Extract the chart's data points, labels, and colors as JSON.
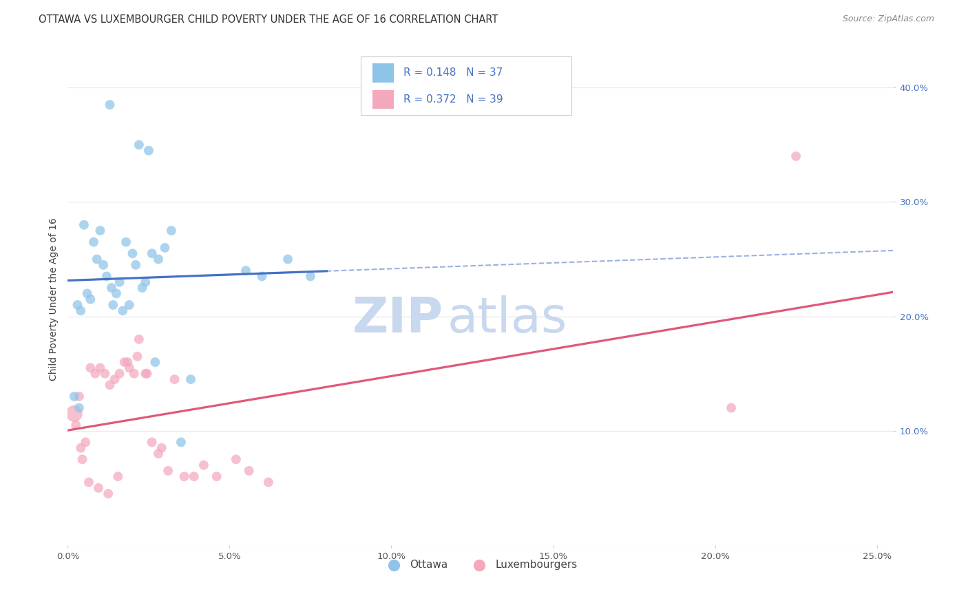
{
  "title": "OTTAWA VS LUXEMBOURGER CHILD POVERTY UNDER THE AGE OF 16 CORRELATION CHART",
  "source": "Source: ZipAtlas.com",
  "ylabel": "Child Poverty Under the Age of 16",
  "x_tick_labels": [
    "0.0%",
    "5.0%",
    "10.0%",
    "15.0%",
    "20.0%",
    "25.0%"
  ],
  "x_tick_values": [
    0.0,
    5.0,
    10.0,
    15.0,
    20.0,
    25.0
  ],
  "y_tick_labels": [
    "10.0%",
    "20.0%",
    "30.0%",
    "40.0%"
  ],
  "y_tick_values": [
    10.0,
    20.0,
    30.0,
    40.0
  ],
  "xlim": [
    0.0,
    25.5
  ],
  "ylim": [
    0.0,
    43.0
  ],
  "legend_labels": [
    "Ottawa",
    "Luxembourgers"
  ],
  "R_ottawa": "0.148",
  "N_ottawa": "37",
  "R_lux": "0.372",
  "N_lux": "39",
  "color_ottawa": "#8ec4e8",
  "color_lux": "#f4a8bc",
  "color_blue_line": "#4472c4",
  "color_pink_line": "#e05878",
  "background_color": "#ffffff",
  "grid_color": "#e8e8e8",
  "watermark_zip": "ZIP",
  "watermark_atlas": "atlas",
  "watermark_color_zip": "#c8d8ee",
  "watermark_color_atlas": "#c8d8ee",
  "legend_text_color": "#4472c4",
  "title_color": "#333333",
  "source_color": "#888888",
  "ottawa_x": [
    1.3,
    2.2,
    2.5,
    0.5,
    0.8,
    0.9,
    1.0,
    1.1,
    1.2,
    1.35,
    1.5,
    1.6,
    1.8,
    2.0,
    2.1,
    2.3,
    2.4,
    2.8,
    3.0,
    3.2,
    0.3,
    0.4,
    0.6,
    0.7,
    1.4,
    1.7,
    1.9,
    2.6,
    3.5,
    5.5,
    6.0,
    6.8,
    0.2,
    0.35,
    2.7,
    3.8,
    7.5
  ],
  "ottawa_y": [
    38.5,
    35.0,
    34.5,
    28.0,
    26.5,
    25.0,
    27.5,
    24.5,
    23.5,
    22.5,
    22.0,
    23.0,
    26.5,
    25.5,
    24.5,
    22.5,
    23.0,
    25.0,
    26.0,
    27.5,
    21.0,
    20.5,
    22.0,
    21.5,
    21.0,
    20.5,
    21.0,
    25.5,
    9.0,
    24.0,
    23.5,
    25.0,
    13.0,
    12.0,
    16.0,
    14.5,
    23.5
  ],
  "ottawa_sizes": [
    100,
    100,
    100,
    100,
    100,
    100,
    100,
    100,
    100,
    100,
    100,
    100,
    100,
    100,
    100,
    100,
    100,
    100,
    100,
    100,
    100,
    100,
    100,
    100,
    100,
    100,
    100,
    100,
    100,
    100,
    100,
    100,
    100,
    100,
    100,
    100,
    100
  ],
  "lux_x": [
    0.25,
    0.4,
    0.55,
    0.7,
    0.85,
    1.0,
    1.15,
    1.3,
    1.45,
    1.6,
    1.75,
    1.9,
    2.05,
    2.2,
    2.4,
    2.6,
    2.8,
    3.1,
    3.6,
    4.2,
    5.2,
    6.2,
    0.45,
    0.65,
    0.95,
    1.25,
    1.55,
    1.85,
    2.15,
    2.45,
    3.3,
    4.6,
    5.6,
    0.2,
    0.35,
    2.9,
    3.9,
    20.5,
    22.5
  ],
  "lux_y": [
    10.5,
    8.5,
    9.0,
    15.5,
    15.0,
    15.5,
    15.0,
    14.0,
    14.5,
    15.0,
    16.0,
    15.5,
    15.0,
    18.0,
    15.0,
    9.0,
    8.0,
    6.5,
    6.0,
    7.0,
    7.5,
    5.5,
    7.5,
    5.5,
    5.0,
    4.5,
    6.0,
    16.0,
    16.5,
    15.0,
    14.5,
    6.0,
    6.5,
    11.5,
    13.0,
    8.5,
    6.0,
    12.0,
    34.0
  ],
  "lux_sizes": [
    100,
    100,
    100,
    100,
    100,
    100,
    100,
    100,
    100,
    100,
    100,
    100,
    100,
    100,
    100,
    100,
    100,
    100,
    100,
    100,
    100,
    100,
    100,
    100,
    100,
    100,
    100,
    100,
    100,
    100,
    100,
    100,
    100,
    100,
    100,
    100,
    100,
    100,
    100
  ],
  "lux_big_idx": 33,
  "lux_big_size": 300,
  "title_fontsize": 10.5,
  "source_fontsize": 9,
  "legend_fontsize": 11,
  "axis_label_fontsize": 10,
  "tick_fontsize": 9.5,
  "watermark_fontsize": 52
}
